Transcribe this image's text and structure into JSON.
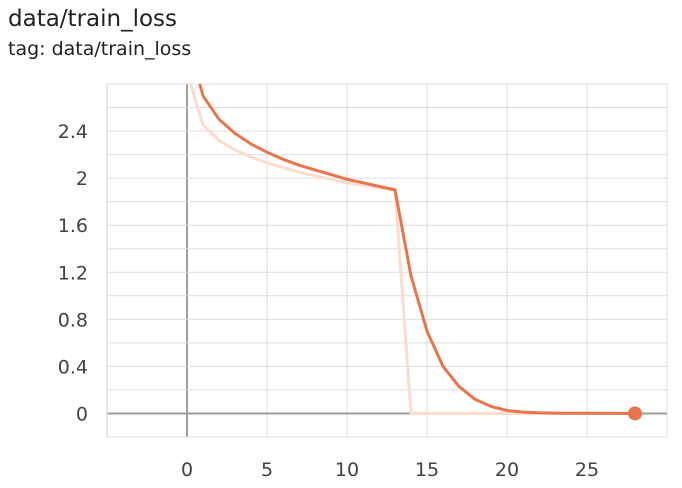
{
  "card": {
    "title": "data/train_loss",
    "subtitle": "tag: data/train_loss"
  },
  "chart_data": {
    "type": "line",
    "title": "data/train_loss",
    "subtitle": "tag: data/train_loss",
    "xlabel": "",
    "ylabel": "",
    "xlim": [
      -5,
      30
    ],
    "ylim": [
      -0.2,
      2.8
    ],
    "x_ticks": [
      0,
      5,
      10,
      15,
      20,
      25
    ],
    "y_ticks": [
      0,
      0.4,
      0.8,
      1.2,
      1.6,
      2,
      2.4
    ],
    "x_tick_labels": [
      "0",
      "5",
      "10",
      "15",
      "20",
      "25"
    ],
    "y_tick_labels": [
      "0",
      "0.4",
      "0.8",
      "1.2",
      "1.6",
      "2",
      "2.4"
    ],
    "grid": true,
    "legend": "none",
    "colors": {
      "smoothed": "#e8754c",
      "raw": "#fcdccd",
      "axis": "#9e9e9e",
      "grid": "#dddddd"
    },
    "series": [
      {
        "role": "smoothed",
        "x": [
          0,
          1,
          2,
          3,
          4,
          5,
          6,
          7,
          8,
          9,
          10,
          11,
          12,
          13,
          14,
          15,
          16,
          17,
          18,
          19,
          20,
          21,
          22,
          23,
          24,
          25,
          26,
          27,
          28
        ],
        "values": [
          3.2,
          2.7,
          2.5,
          2.38,
          2.29,
          2.22,
          2.16,
          2.11,
          2.07,
          2.03,
          1.99,
          1.96,
          1.93,
          1.9,
          1.17,
          0.7,
          0.4,
          0.23,
          0.12,
          0.06,
          0.025,
          0.012,
          0.006,
          0.003,
          0.002,
          0.001,
          0.0005,
          0.0002,
          0.0001
        ]
      },
      {
        "role": "raw",
        "x": [
          0,
          1,
          2,
          3,
          4,
          5,
          6,
          7,
          8,
          9,
          10,
          11,
          12,
          13,
          14,
          15,
          16,
          17,
          18,
          19,
          20,
          21,
          22,
          23,
          24,
          25,
          26,
          27,
          28
        ],
        "values": [
          2.9,
          2.45,
          2.32,
          2.24,
          2.18,
          2.13,
          2.09,
          2.05,
          2.02,
          1.99,
          1.96,
          1.94,
          1.92,
          1.9,
          0.0,
          0.0,
          0.0,
          0.0,
          0.0,
          0.0,
          0.0,
          0.0,
          0.0,
          0.0,
          0.0,
          0.0,
          0.0,
          0.0,
          0.0
        ]
      }
    ],
    "last_point": {
      "x": 28,
      "y": 0.0001
    }
  }
}
